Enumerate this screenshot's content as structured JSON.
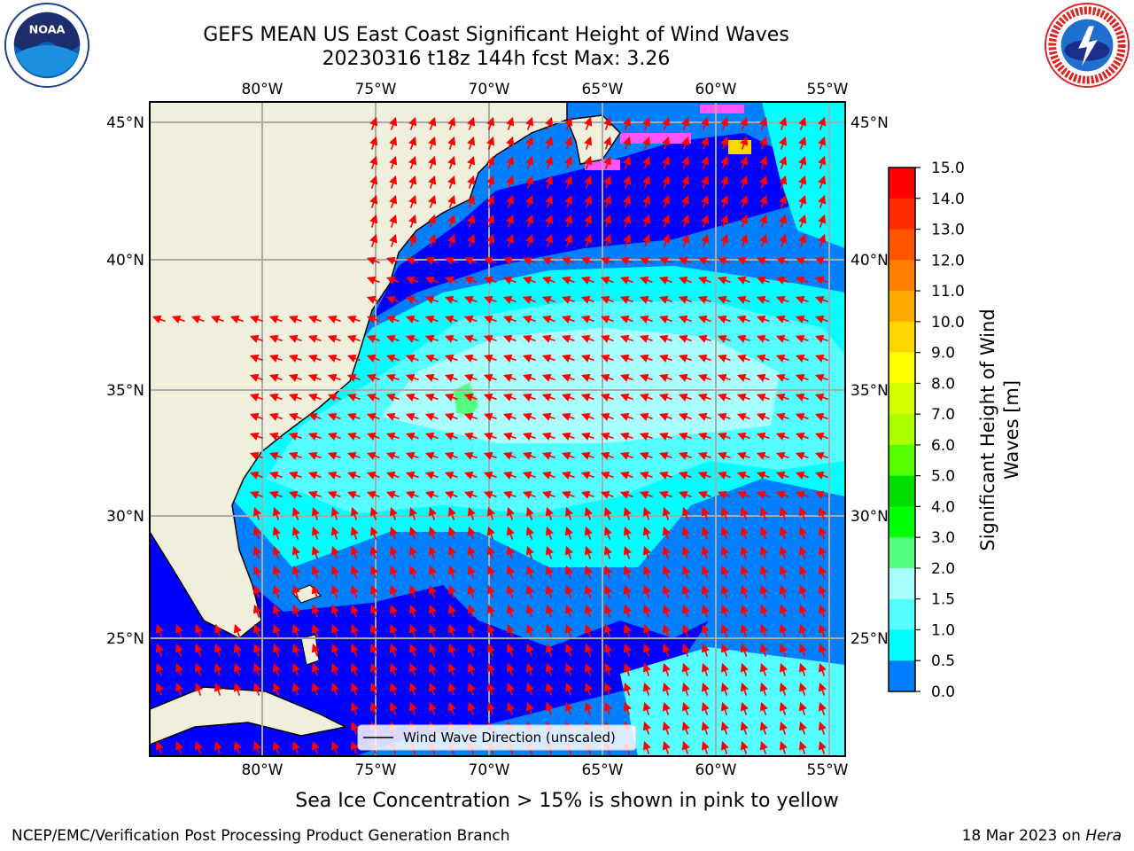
{
  "title": {
    "line1": "GEFS MEAN US East Coast Significant Height of Wind Waves",
    "line2": "20230316 t18z 144h fcst   Max: 3.26"
  },
  "logos": {
    "left": {
      "icon": "noaa-logo",
      "text": "NOAA"
    },
    "right": {
      "icon": "nws-logo",
      "text": "NATIONAL WEATHER SERVICE"
    }
  },
  "map": {
    "lon_ticks": [
      "80°W",
      "75°W",
      "70°W",
      "65°W",
      "60°W",
      "55°W"
    ],
    "lat_ticks": [
      "45°N",
      "40°N",
      "35°N",
      "30°N",
      "25°N"
    ],
    "legend_label": "Wind Wave Direction (unscaled)",
    "grid": true
  },
  "colorbar": {
    "title_line1": "Significant Height of Wind",
    "title_line2": "Waves [m]",
    "ticks": [
      "15.0",
      "14.0",
      "13.0",
      "12.0",
      "11.0",
      "10.0",
      "9.0",
      "8.0",
      "7.0",
      "6.0",
      "5.0",
      "4.0",
      "3.0",
      "2.0",
      "1.5",
      "1.0",
      "0.5",
      "0.0"
    ],
    "colors": [
      "#ff0000",
      "#ff2a00",
      "#ff5500",
      "#ff8000",
      "#ffaa00",
      "#ffd500",
      "#ffff00",
      "#d5ff00",
      "#aaff00",
      "#55ff00",
      "#00e000",
      "#00ff00",
      "#55ff80",
      "#aaffff",
      "#55ffff",
      "#00ffff",
      "#0080ff",
      "#0000ff"
    ]
  },
  "footer": {
    "ice_note": "Sea Ice Concentration > 15% is shown in pink to yellow",
    "branch": "NCEP/EMC/Verification Post Processing Product Generation Branch",
    "date": "18 Mar 2023 on",
    "host": "Hera"
  }
}
